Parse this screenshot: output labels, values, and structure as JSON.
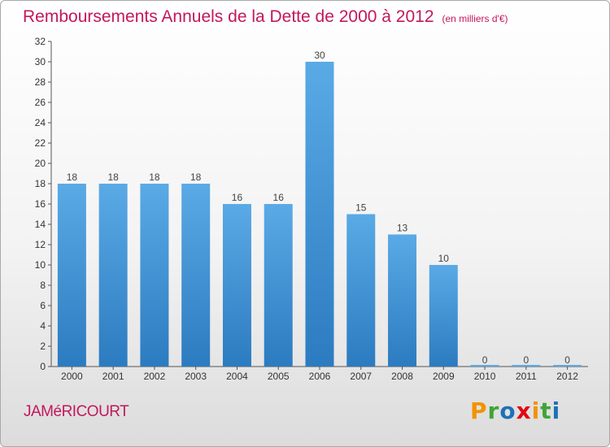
{
  "header": {
    "title": "Remboursements Annuels de la Dette de 2000 à 2012",
    "unit": "(en milliers d'€)"
  },
  "footer": {
    "commune": "JAMéRICOURT",
    "logo_text": "Proxiti"
  },
  "colors": {
    "title": "#c2185b",
    "bar_top": "#5aaae6",
    "bar_bottom": "#2c7bc0"
  },
  "chart_data": {
    "type": "bar",
    "title": "Remboursements Annuels de la Dette de 2000 à 2012",
    "xlabel": "",
    "ylabel": "",
    "categories": [
      "2000",
      "2001",
      "2002",
      "2003",
      "2004",
      "2005",
      "2006",
      "2007",
      "2008",
      "2009",
      "2010",
      "2011",
      "2012"
    ],
    "values": [
      18,
      18,
      18,
      18,
      16,
      16,
      30,
      15,
      13,
      10,
      0,
      0,
      0
    ],
    "data_labels": [
      "18",
      "18",
      "18",
      "18",
      "16",
      "16",
      "30",
      "15",
      "13",
      "10",
      "0",
      "0",
      "0"
    ],
    "ylim": [
      0,
      32
    ],
    "yticks": [
      0,
      2,
      4,
      6,
      8,
      10,
      12,
      14,
      16,
      18,
      20,
      22,
      24,
      26,
      28,
      30,
      32
    ],
    "grid": false
  }
}
